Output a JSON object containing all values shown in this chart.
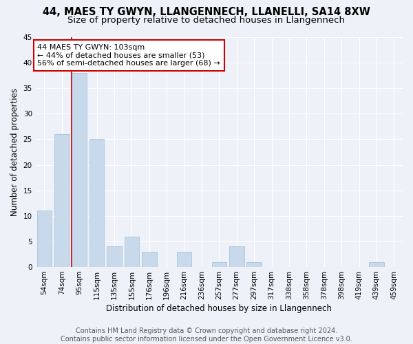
{
  "title": "44, MAES TY GWYN, LLANGENNECH, LLANELLI, SA14 8XW",
  "subtitle": "Size of property relative to detached houses in Llangennech",
  "xlabel": "Distribution of detached houses by size in Llangennech",
  "ylabel": "Number of detached properties",
  "categories": [
    "54sqm",
    "74sqm",
    "95sqm",
    "115sqm",
    "135sqm",
    "155sqm",
    "176sqm",
    "196sqm",
    "216sqm",
    "236sqm",
    "257sqm",
    "277sqm",
    "297sqm",
    "317sqm",
    "338sqm",
    "358sqm",
    "378sqm",
    "398sqm",
    "419sqm",
    "439sqm",
    "459sqm"
  ],
  "values": [
    11,
    26,
    38,
    25,
    4,
    6,
    3,
    0,
    3,
    0,
    1,
    4,
    1,
    0,
    0,
    0,
    0,
    0,
    0,
    1,
    0
  ],
  "bar_color": "#c9d9ec",
  "bar_edge_color": "#a8c4dc",
  "ylim": [
    0,
    45
  ],
  "yticks": [
    0,
    5,
    10,
    15,
    20,
    25,
    30,
    35,
    40,
    45
  ],
  "red_line_index": 2,
  "annotation_line1": "44 MAES TY GWYN: 103sqm",
  "annotation_line2": "← 44% of detached houses are smaller (53)",
  "annotation_line3": "56% of semi-detached houses are larger (68) →",
  "annotation_box_color": "#ffffff",
  "annotation_box_edge": "#cc0000",
  "footer_line1": "Contains HM Land Registry data © Crown copyright and database right 2024.",
  "footer_line2": "Contains public sector information licensed under the Open Government Licence v3.0.",
  "background_color": "#eef2f8",
  "grid_color": "#ffffff",
  "title_fontsize": 10.5,
  "subtitle_fontsize": 9.5,
  "axis_label_fontsize": 8.5,
  "tick_fontsize": 7.5,
  "annotation_fontsize": 8,
  "footer_fontsize": 7
}
